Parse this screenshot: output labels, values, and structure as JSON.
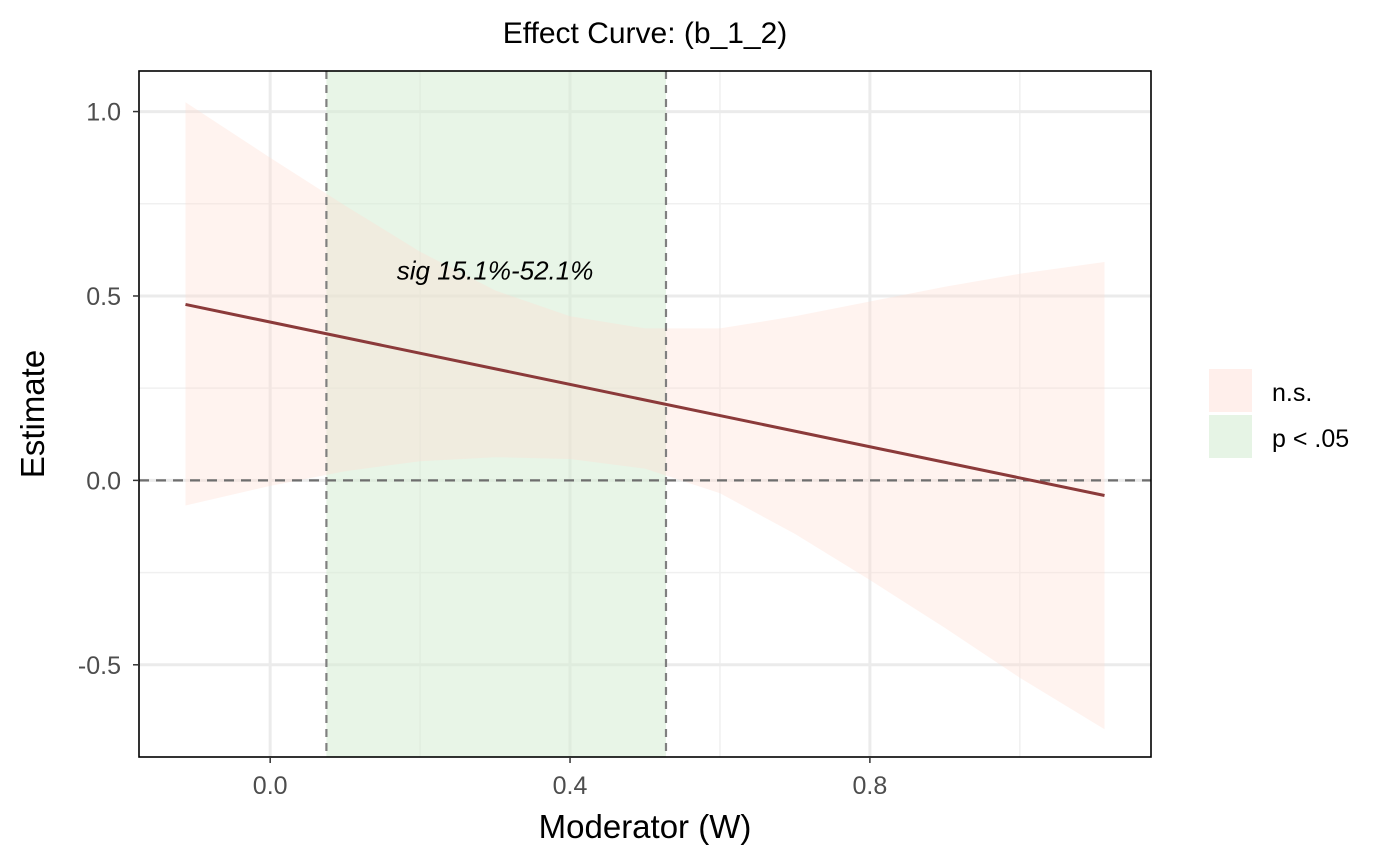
{
  "chart_data": {
    "type": "line",
    "title": "Effect Curve: (b_1_2)",
    "xlabel": "Moderator (W)",
    "ylabel": "Estimate",
    "xlim": [
      -0.175,
      1.175
    ],
    "ylim": [
      -0.75,
      1.11
    ],
    "x_ticks": [
      "0.0",
      "0.4",
      "0.8"
    ],
    "x_tick_values": [
      0.0,
      0.4,
      0.8
    ],
    "y_ticks": [
      "-0.5",
      "0.0",
      "0.5",
      "1.0"
    ],
    "y_tick_values": [
      -0.5,
      0.0,
      0.5,
      1.0
    ],
    "grid": true,
    "estimate_line": {
      "color": "#8b3a3a",
      "x": [
        -0.113,
        1.113
      ],
      "y": [
        0.477,
        -0.041
      ]
    },
    "confidence_band": {
      "color": "#ffdcd2",
      "x": [
        -0.113,
        0.0,
        0.1,
        0.2,
        0.3,
        0.4,
        0.5,
        0.6,
        0.7,
        0.8,
        0.9,
        1.0,
        1.113
      ],
      "lower": [
        -0.068,
        -0.015,
        0.025,
        0.052,
        0.063,
        0.058,
        0.032,
        -0.035,
        -0.145,
        -0.27,
        -0.4,
        -0.535,
        -0.675
      ],
      "upper": [
        1.025,
        0.875,
        0.745,
        0.62,
        0.515,
        0.445,
        0.412,
        0.412,
        0.445,
        0.485,
        0.525,
        0.56,
        0.592
      ]
    },
    "significance_region": {
      "x_start": 0.075,
      "x_end": 0.528,
      "color": "#d6ecd4",
      "label": "sig 15.1%-52.1%",
      "label_x": 0.3,
      "label_y": 0.545
    },
    "reference_line_y": 0.0,
    "legend": {
      "position": "right",
      "entries": [
        {
          "label": "n.s.",
          "color": "#ffdcd2"
        },
        {
          "label": "p < .05",
          "color": "#d6ecd4"
        }
      ]
    }
  }
}
